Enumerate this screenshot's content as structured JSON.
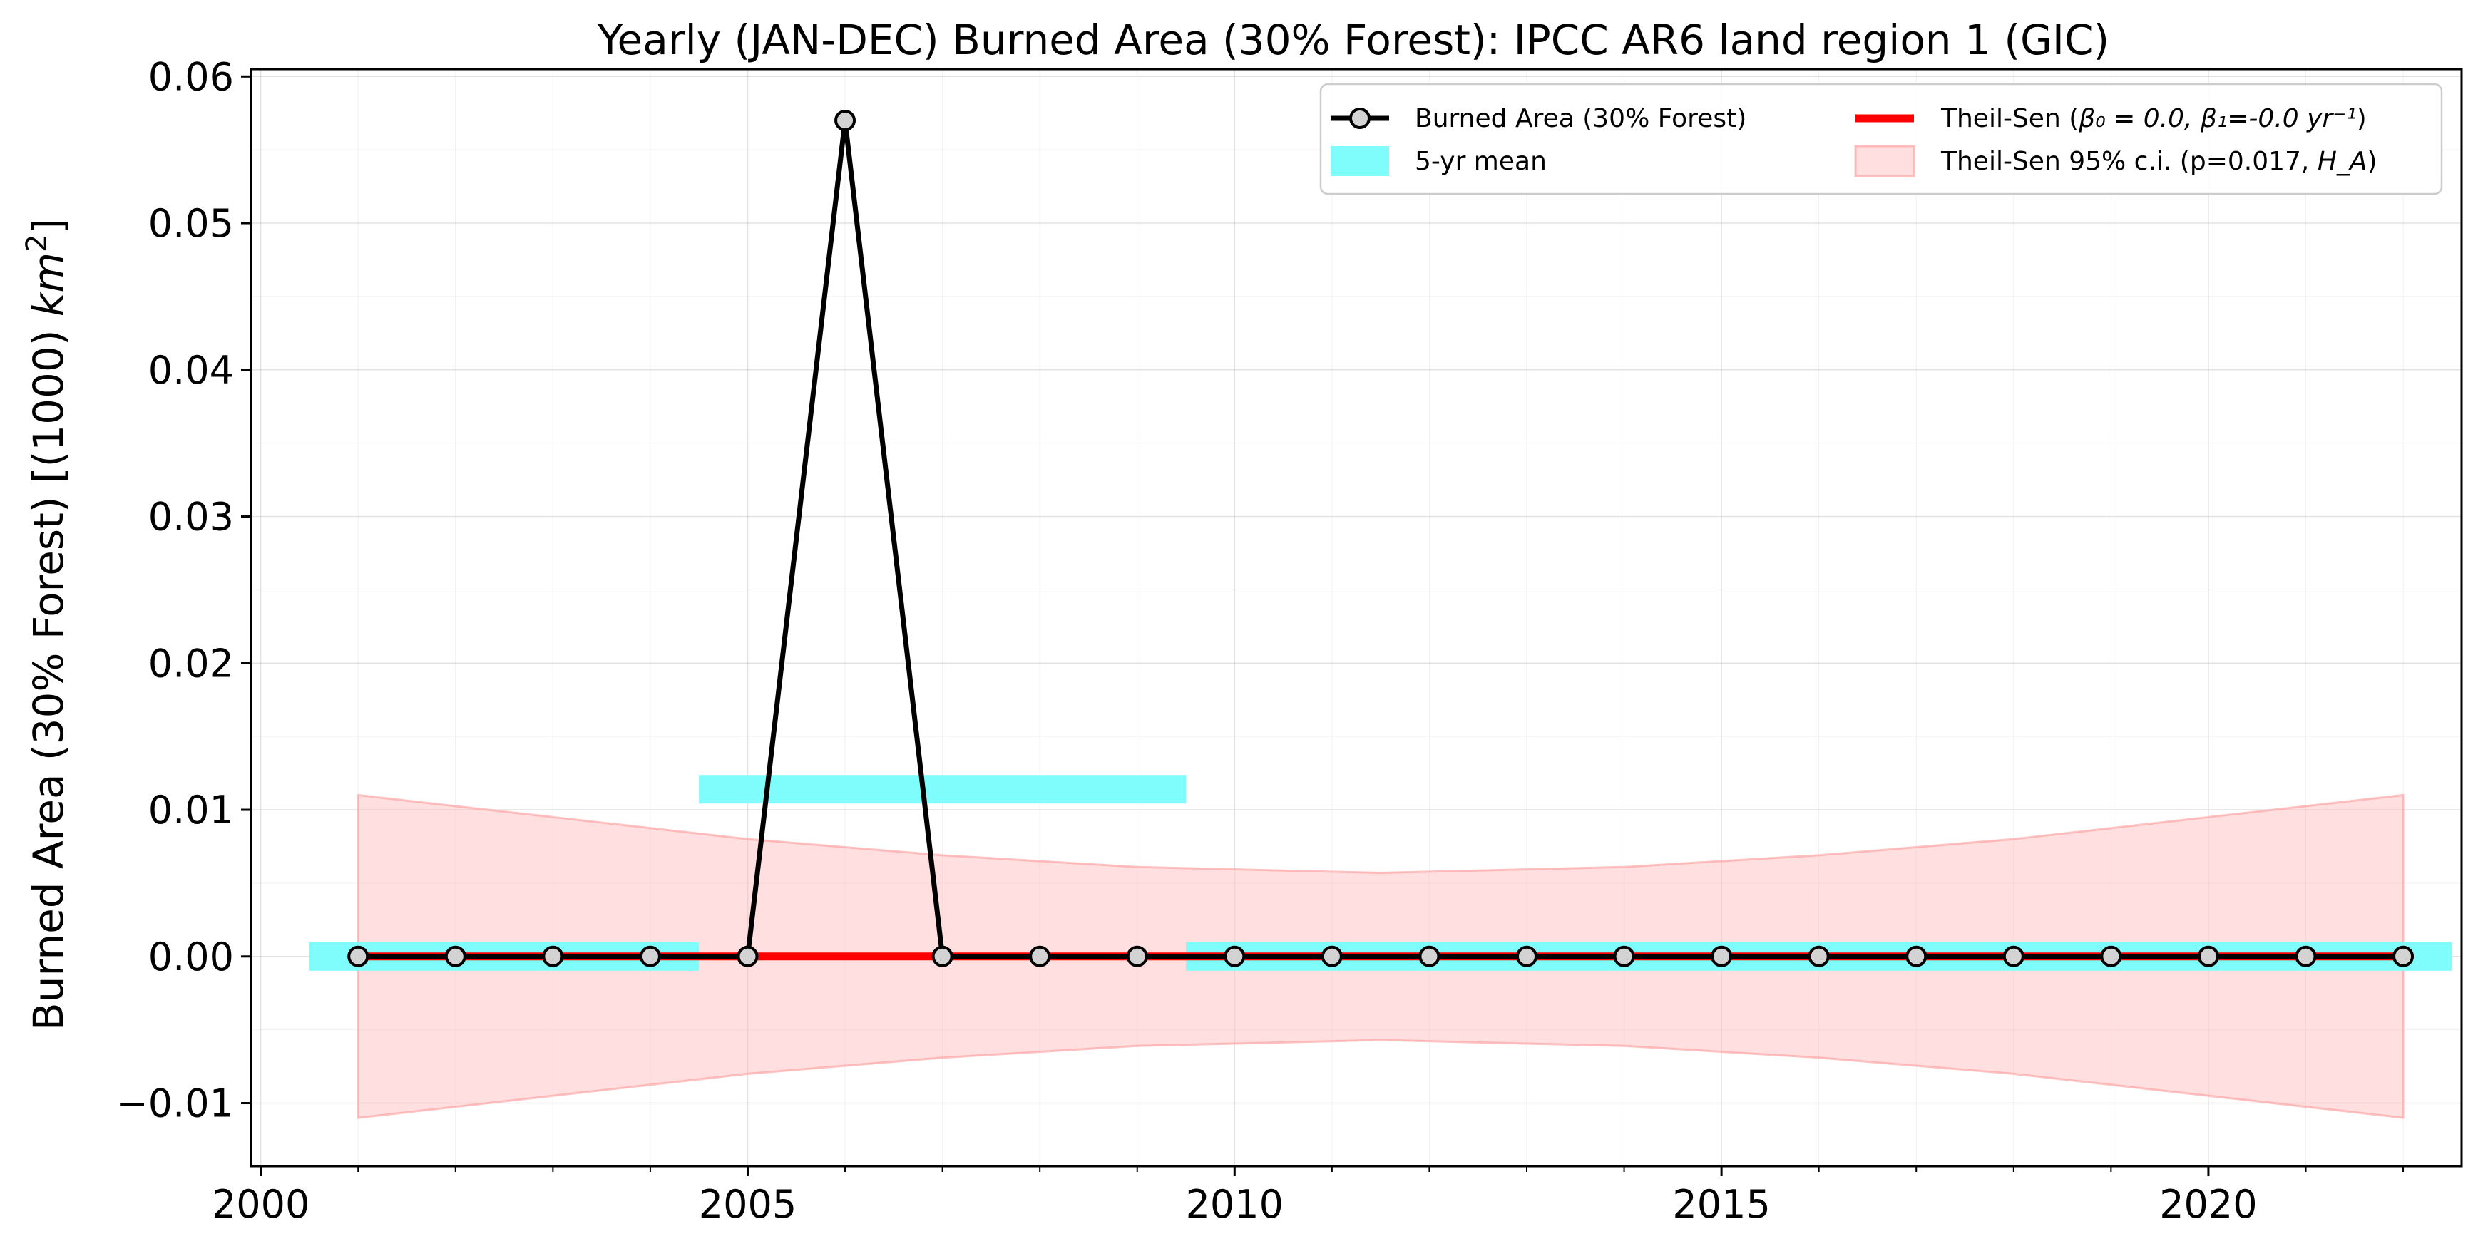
{
  "chart_data": {
    "type": "line",
    "title": "Yearly (JAN-DEC) Burned Area (30% Forest): IPCC AR6 land region 1 (GIC)",
    "ylabel": "Burned Area (30% Forest) [(1000) km²]",
    "xlabel": "",
    "xlim": [
      1999.9,
      2022.6
    ],
    "ylim": [
      -0.0143,
      0.0605
    ],
    "xticks": [
      "2000",
      "2005",
      "2010",
      "2015",
      "2020"
    ],
    "xtick_values": [
      2000,
      2005,
      2010,
      2015,
      2020
    ],
    "yticks": [
      "0.06",
      "0.05",
      "0.04",
      "0.03",
      "0.02",
      "0.01",
      "0.00",
      "−0.01"
    ],
    "ytick_values": [
      0.06,
      0.05,
      0.04,
      0.03,
      0.02,
      0.01,
      0.0,
      -0.01
    ],
    "grid": true,
    "legend_position": "top-right",
    "series": [
      {
        "name": "Burned Area (30% Forest)",
        "color": "#000000",
        "marker_fill": "#d3d3d3",
        "x": [
          2001,
          2002,
          2003,
          2004,
          2005,
          2006,
          2007,
          2008,
          2009,
          2010,
          2011,
          2012,
          2013,
          2014,
          2015,
          2016,
          2017,
          2018,
          2019,
          2020,
          2021,
          2022
        ],
        "y": [
          0,
          0,
          0,
          0,
          0,
          0.057,
          0,
          0,
          0,
          0,
          0,
          0,
          0,
          0,
          0,
          0,
          0,
          0,
          0,
          0,
          0,
          0
        ]
      }
    ],
    "five_year_mean": {
      "name": "5-yr mean",
      "color": "#7ffcfc",
      "segments": [
        {
          "x_start": 2000.5,
          "x_end": 2004.5,
          "value": 0.0
        },
        {
          "x_start": 2004.5,
          "x_end": 2009.5,
          "value": 0.0114
        },
        {
          "x_start": 2009.5,
          "x_end": 2022.5,
          "value": 0.0
        }
      ]
    },
    "theil_sen": {
      "name": "Theil-Sen (β₀ = 0.0, β₁=-0.0 yr⁻¹)",
      "color": "#ff0000",
      "x": [
        2001,
        2022
      ],
      "y": [
        0.0,
        0.0
      ]
    },
    "confidence_interval": {
      "name": "Theil-Sen 95% c.i. (p=0.017, H_A)",
      "color": "#ffb3b3",
      "x": [
        2001,
        2003,
        2005,
        2007,
        2009,
        2011.5,
        2014,
        2016,
        2018,
        2020,
        2022
      ],
      "upper": [
        0.011,
        0.0095,
        0.008,
        0.0069,
        0.0061,
        0.0057,
        0.0061,
        0.0069,
        0.008,
        0.0095,
        0.011
      ],
      "lower": [
        -0.011,
        -0.0095,
        -0.008,
        -0.0069,
        -0.0061,
        -0.0057,
        -0.0061,
        -0.0069,
        -0.008,
        -0.0095,
        -0.011
      ]
    },
    "legend": [
      {
        "key": "series",
        "label_main": "Burned Area (30% Forest)"
      },
      {
        "key": "mean",
        "label_main": "5-yr mean"
      },
      {
        "key": "theil",
        "label_main": "Theil-Sen (",
        "label_math": "β₀ = 0.0, β₁=-0.0 yr⁻¹",
        "label_end": ")"
      },
      {
        "key": "ci",
        "label_main": "Theil-Sen 95% c.i. (p=0.017, ",
        "label_math": "H_A",
        "label_end": ")"
      }
    ]
  }
}
